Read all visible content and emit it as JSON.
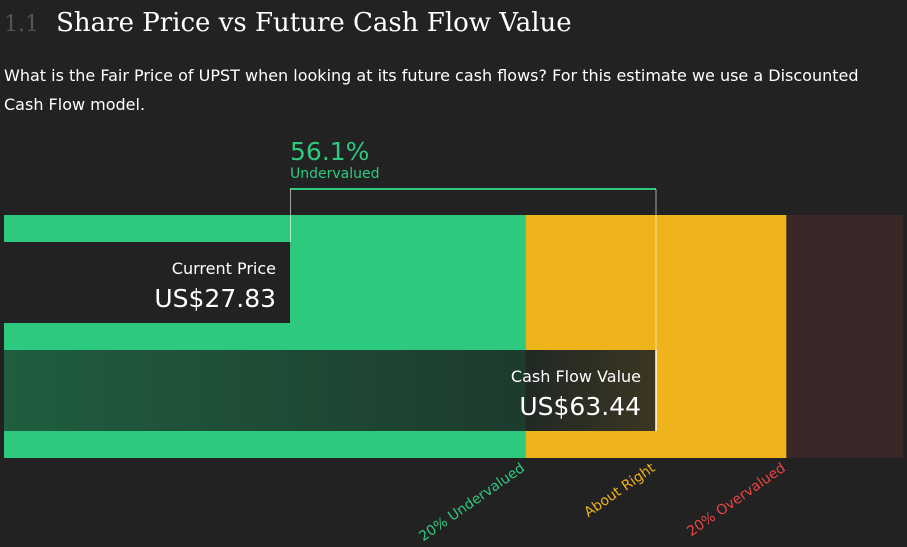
{
  "header": {
    "section_number": "1.1",
    "title": "Share Price vs Future Cash Flow Value",
    "description": "What is the Fair Price of UPST when looking at its future cash flows? For this estimate we use a Discounted Cash Flow model."
  },
  "chart_data": {
    "type": "bar",
    "title": "Share Price vs Future Cash Flow Value",
    "currency": "US$",
    "current_price": {
      "label": "Current Price",
      "value": 27.83,
      "display": "US$27.83"
    },
    "cash_flow_value": {
      "label": "Cash Flow Value",
      "value": 63.44,
      "display": "US$63.44"
    },
    "valuation": {
      "percent_text": "56.1%",
      "status": "Undervalued"
    },
    "zones": [
      {
        "label": "20% Undervalued",
        "color": "#2dc97e"
      },
      {
        "label": "About Right",
        "color": "#efb31c"
      },
      {
        "label": "20% Overvalued",
        "color": "#3a2727"
      }
    ],
    "zone_label_colors": [
      "#2dc97e",
      "#efb31c",
      "#e64545"
    ]
  }
}
